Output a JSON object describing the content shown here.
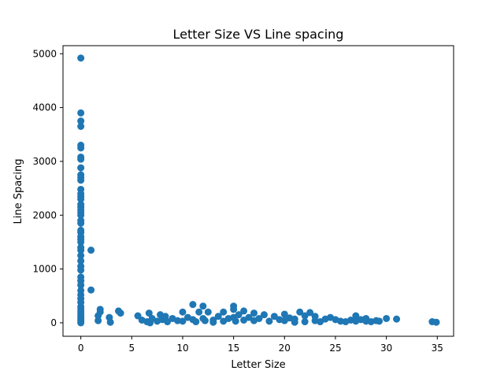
{
  "chart_data": {
    "type": "scatter",
    "title": "Letter Size VS Line spacing",
    "xlabel": "Letter Size",
    "ylabel": "Line Spacing",
    "xlim": [
      -1.75,
      36.6
    ],
    "ylim": [
      -250,
      5150
    ],
    "xticks": [
      0,
      5,
      10,
      15,
      20,
      25,
      30,
      35
    ],
    "yticks": [
      0,
      1000,
      2000,
      3000,
      4000,
      5000
    ],
    "marker_color": "#1f77b4",
    "grid": false,
    "legend": "none",
    "series": [
      {
        "x": [
          0,
          0,
          0,
          0,
          0,
          0,
          0,
          0,
          0,
          0,
          0,
          0,
          0,
          0,
          0,
          0,
          0,
          0,
          0,
          0,
          0,
          0,
          0,
          0,
          0,
          0,
          0,
          0,
          0,
          0,
          0,
          0,
          0,
          0,
          0,
          0,
          0,
          0,
          0,
          0,
          0,
          0,
          0,
          0,
          0,
          0,
          0,
          0,
          0,
          1.0,
          1.0,
          1.7,
          1.7,
          1.9,
          1.9,
          2.8,
          2.9,
          3.7,
          3.9,
          5.6,
          6.0,
          6.5,
          6.7,
          6.8,
          7.0,
          7.5,
          7.8,
          8.0,
          8.3,
          8.5,
          9.0,
          9.5,
          10.0,
          10.0,
          10.5,
          11.0,
          11.0,
          11.3,
          11.6,
          12.0,
          12.0,
          12.2,
          12.5,
          13.0,
          13.0,
          13.5,
          14.0,
          14.0,
          14.5,
          15.0,
          15.0,
          15.0,
          15.2,
          15.5,
          16.0,
          16.0,
          16.5,
          17.0,
          17.0,
          17.5,
          18.0,
          18.5,
          19.0,
          19.5,
          20.0,
          20.0,
          20.5,
          21.0,
          21.0,
          21.5,
          22.0,
          22.0,
          22.5,
          23.0,
          23.0,
          23.5,
          24.0,
          24.5,
          25.0,
          25.5,
          26.0,
          26.5,
          27.0,
          27.0,
          27.5,
          28.0,
          28.0,
          28.5,
          29.0,
          29.3,
          30.0,
          31.0,
          34.5,
          34.9
        ],
        "y": [
          4920,
          3900,
          3750,
          3650,
          3300,
          3250,
          3080,
          3040,
          2880,
          2750,
          2700,
          2650,
          2480,
          2400,
          2350,
          2300,
          2200,
          2150,
          2100,
          2050,
          2000,
          1900,
          1850,
          1720,
          1680,
          1600,
          1550,
          1500,
          1400,
          1350,
          1250,
          1150,
          1050,
          980,
          850,
          780,
          700,
          600,
          520,
          450,
          380,
          300,
          250,
          200,
          150,
          100,
          60,
          30,
          0,
          1350,
          610,
          130,
          40,
          250,
          200,
          100,
          10,
          220,
          180,
          130,
          50,
          20,
          180,
          0,
          80,
          30,
          150,
          60,
          120,
          20,
          80,
          40,
          200,
          30,
          100,
          340,
          60,
          20,
          200,
          310,
          80,
          40,
          200,
          50,
          10,
          120,
          200,
          30,
          80,
          310,
          250,
          100,
          30,
          150,
          220,
          50,
          100,
          180,
          40,
          80,
          150,
          30,
          120,
          60,
          160,
          40,
          90,
          70,
          10,
          200,
          130,
          20,
          190,
          40,
          120,
          20,
          70,
          100,
          60,
          30,
          20,
          50,
          130,
          30,
          60,
          80,
          30,
          20,
          40,
          30,
          80,
          70,
          20,
          10
        ]
      }
    ]
  }
}
